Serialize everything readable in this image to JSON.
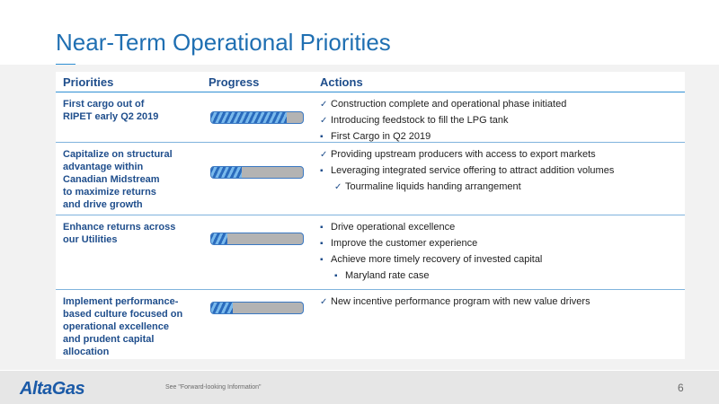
{
  "slide": {
    "title": "Near-Term Operational Priorities"
  },
  "table": {
    "headers": {
      "priorities": "Priorities",
      "progress": "Progress",
      "actions": "Actions"
    },
    "rows": [
      {
        "priority": "First cargo out of\nRIPET early Q2 2019",
        "progress": 0.82,
        "actions": [
          {
            "marker": "check",
            "text": "Construction complete and operational phase initiated"
          },
          {
            "marker": "check",
            "text": "Introducing feedstock to fill the LPG tank"
          },
          {
            "marker": "square",
            "text": "First Cargo in Q2 2019"
          }
        ]
      },
      {
        "priority": "Capitalize on structural\nadvantage within\nCanadian Midstream\nto maximize returns\nand drive growth",
        "progress": 0.33,
        "actions": [
          {
            "marker": "check",
            "text": "Providing upstream producers with access to export markets"
          },
          {
            "marker": "square",
            "text": "Leveraging integrated service offering to attract addition volumes"
          },
          {
            "marker": "check",
            "text": "Tourmaline liquids handing arrangement",
            "sub": true
          }
        ]
      },
      {
        "priority": "Enhance returns across\nour Utilities",
        "progress": 0.18,
        "actions": [
          {
            "marker": "square",
            "text": "Drive operational excellence"
          },
          {
            "marker": "square",
            "text": "Improve the customer experience"
          },
          {
            "marker": "square",
            "text": "Achieve more timely recovery of invested capital"
          },
          {
            "marker": "square",
            "text": "Maryland rate case",
            "sub": true
          }
        ]
      },
      {
        "priority": "Implement performance-\nbased culture focused on\noperational excellence\nand prudent capital\nallocation",
        "progress": 0.24,
        "actions": [
          {
            "marker": "check",
            "text": "New incentive performance program with new value drivers"
          }
        ]
      }
    ]
  },
  "footer": {
    "logo": "AltaGas",
    "disclaimer": "See \"Forward-looking Information\"",
    "page_number": "6"
  },
  "colors": {
    "title": "#1f6fb2",
    "accent": "#2f8fd3",
    "header_text": "#1f4e8c"
  }
}
